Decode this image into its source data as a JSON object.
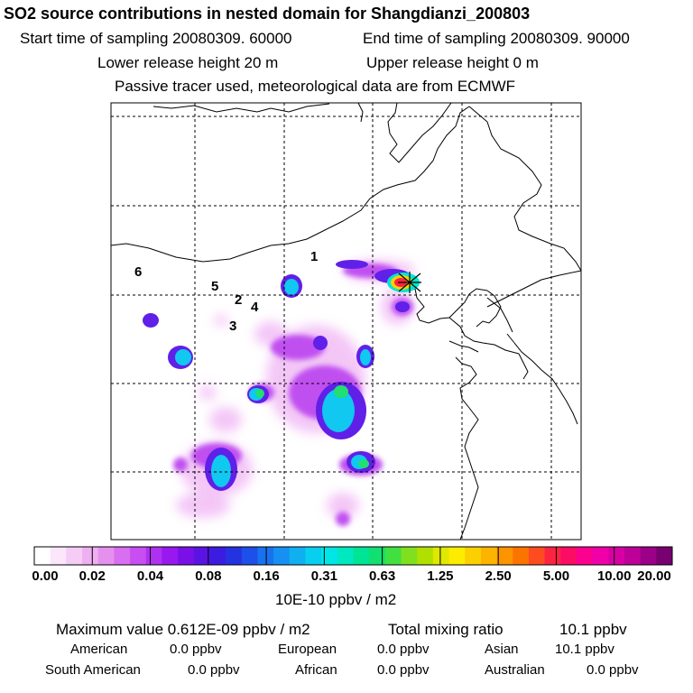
{
  "header": {
    "title": "SO2 source contributions in nested domain for Shangdianzi_200803",
    "start_label": "Start time of sampling 20080309. 60000",
    "end_label": "End time of sampling 20080309. 90000",
    "lower_label": "Lower release height   20 m",
    "upper_label": "Upper release height    0 m",
    "tracer_label": "Passive tracer used, meteorological data are from ECMWF"
  },
  "chart_data": {
    "type": "heatmap",
    "title": "SO2 source contributions in nested domain for Shangdianzi_200803",
    "colorbar": {
      "tick_labels": [
        "0.00",
        "0.02",
        "0.04",
        "0.08",
        "0.16",
        "0.31",
        "0.63",
        "1.25",
        "2.50",
        "5.00",
        "10.00",
        "20.00"
      ],
      "unit_label": "10E-10 ppbv / m2",
      "colors": [
        "#ffffff",
        "#fbe6fb",
        "#f5ccf5",
        "#eeb0f0",
        "#e590ee",
        "#d86ef0",
        "#c84ef2",
        "#b030f2",
        "#9818ef",
        "#7a10e8",
        "#5a14e2",
        "#3c1ce0",
        "#2432e0",
        "#1c50e8",
        "#1872ef",
        "#1690f2",
        "#10b0f0",
        "#08cef0",
        "#00e6e6",
        "#00e8c0",
        "#00e496",
        "#10e070",
        "#40e040",
        "#80e020",
        "#b0e000",
        "#e0e800",
        "#fcec00",
        "#fcd000",
        "#fcb400",
        "#fc9400",
        "#fc7400",
        "#fc4c20",
        "#fc2440",
        "#fc0c64",
        "#fc0090",
        "#f000a8",
        "#d800a4",
        "#bc0098",
        "#9c0088",
        "#780070"
      ]
    },
    "numbered_sites": [
      {
        "label": "1"
      },
      {
        "label": "2"
      },
      {
        "label": "3"
      },
      {
        "label": "4"
      },
      {
        "label": "5"
      },
      {
        "label": "6"
      }
    ]
  },
  "footer": {
    "max_label": "Maximum value  0.612E-09 ppbv / m2",
    "total_label": "Total mixing ratio",
    "total_value": "10.1 ppbv",
    "american_label": "American",
    "american_value": "0.0 ppbv",
    "european_label": "European",
    "european_value": "0.0 ppbv",
    "asian_label": "Asian",
    "asian_value": "10.1 ppbv",
    "south_american_label": "South American",
    "south_american_value": "0.0 ppbv",
    "african_label": "African",
    "african_value": "0.0 ppbv",
    "australian_label": "Australian",
    "australian_value": "0.0 ppbv"
  }
}
